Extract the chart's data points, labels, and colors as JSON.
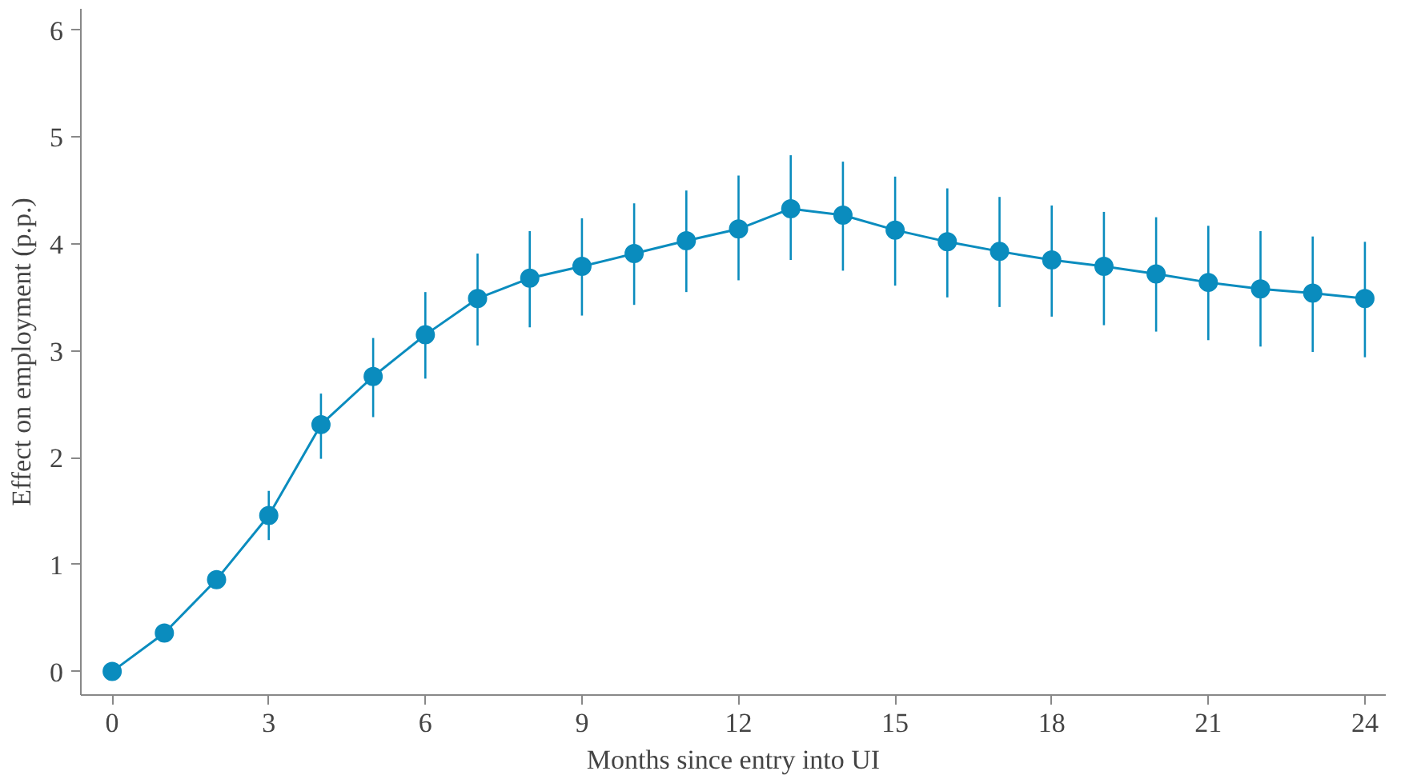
{
  "chart_data": {
    "type": "line",
    "xlabel": "Months since entry into UI",
    "ylabel": "Effect on employment (p.p.)",
    "x": [
      0,
      1,
      2,
      3,
      4,
      5,
      6,
      7,
      8,
      9,
      10,
      11,
      12,
      13,
      14,
      15,
      16,
      17,
      18,
      19,
      20,
      21,
      22,
      23,
      24
    ],
    "series": [
      {
        "color": "#0a8cbe",
        "values": [
          0,
          0.36,
          0.86,
          1.46,
          2.31,
          2.76,
          3.15,
          3.49,
          3.68,
          3.79,
          3.91,
          4.03,
          4.14,
          4.33,
          4.27,
          4.13,
          4.02,
          3.93,
          3.85,
          3.79,
          3.72,
          3.64,
          3.58,
          3.54,
          3.49
        ],
        "errors": [
          null,
          null,
          null,
          [
            1.23,
            1.69
          ],
          [
            1.99,
            2.6
          ],
          [
            2.38,
            3.12
          ],
          [
            2.74,
            3.55
          ],
          [
            3.05,
            3.91
          ],
          [
            3.22,
            4.12
          ],
          [
            3.33,
            4.24
          ],
          [
            3.43,
            4.38
          ],
          [
            3.55,
            4.5
          ],
          [
            3.66,
            4.64
          ],
          [
            3.85,
            4.83
          ],
          [
            3.75,
            4.77
          ],
          [
            3.61,
            4.63
          ],
          [
            3.5,
            4.52
          ],
          [
            3.41,
            4.44
          ],
          [
            3.32,
            4.36
          ],
          [
            3.24,
            4.3
          ],
          [
            3.18,
            4.25
          ],
          [
            3.1,
            4.17
          ],
          [
            3.04,
            4.12
          ],
          [
            2.99,
            4.07
          ],
          [
            2.94,
            4.02
          ]
        ]
      }
    ],
    "marker": "circle",
    "line_style": "solid",
    "grid": false,
    "xlim": [
      -0.6,
      24.4
    ],
    "ylim": [
      -0.22,
      6.2
    ],
    "xticks": [
      0,
      3,
      6,
      9,
      12,
      15,
      18,
      21,
      24
    ],
    "yticks": [
      0,
      1,
      2,
      3,
      4,
      5,
      6
    ]
  }
}
